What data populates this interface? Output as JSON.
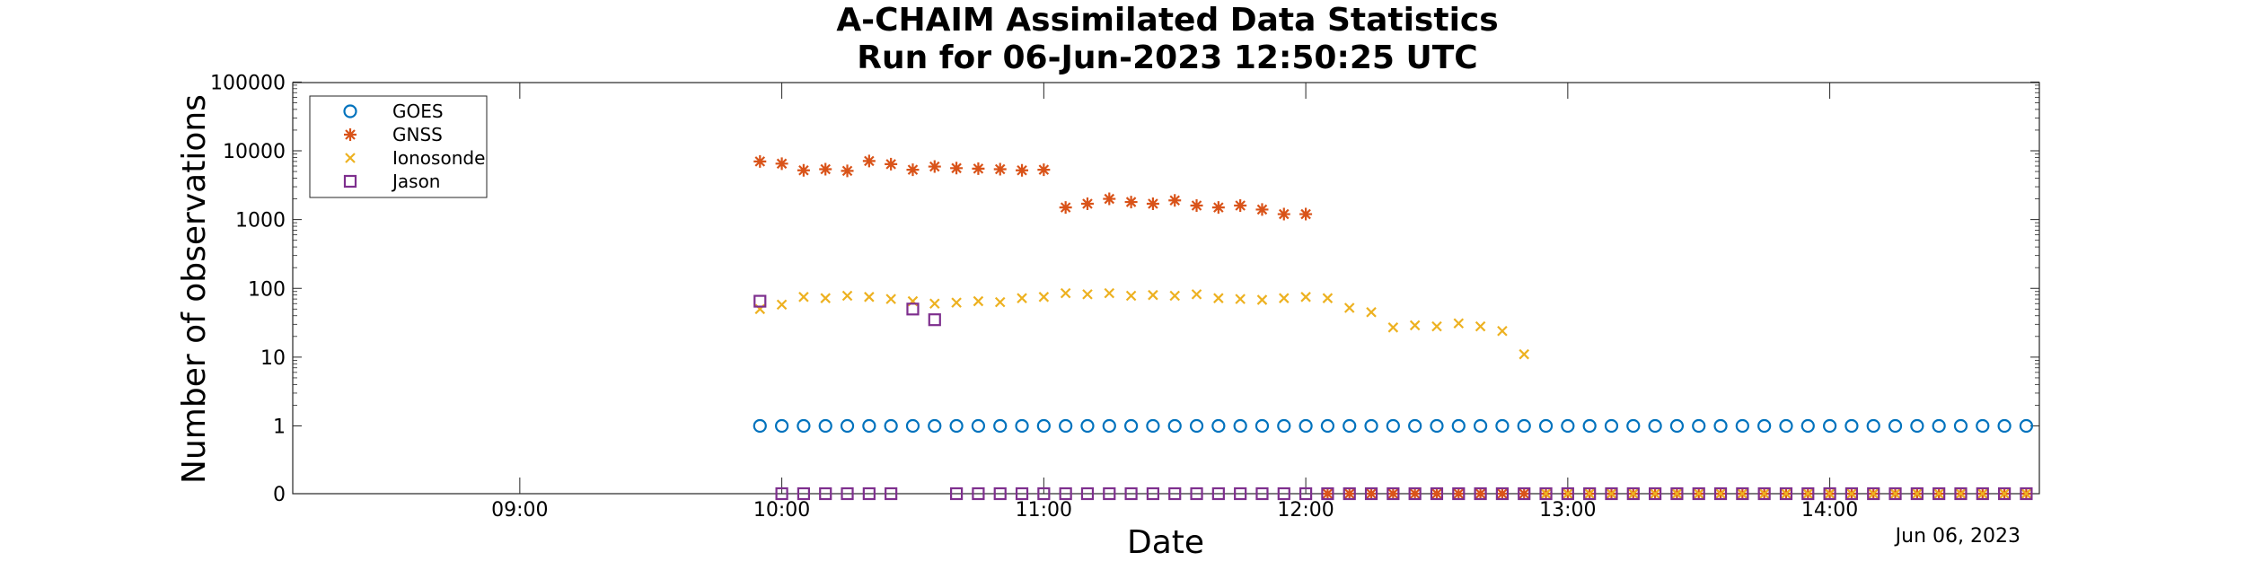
{
  "chart_data": {
    "type": "scatter",
    "title": "A-CHAIM Assimilated Data Statistics",
    "subtitle": "Run for 06-Jun-2023 12:50:25 UTC",
    "xlabel": "Date",
    "ylabel": "Number of observations",
    "date_note": "Jun 06, 2023",
    "xlim": [
      "08:08",
      "14:48"
    ],
    "y_scale": "log",
    "ylim": [
      0,
      100000
    ],
    "y_ticks": [
      "0",
      "1",
      "10",
      "100",
      "1000",
      "10000",
      "100000"
    ],
    "x_ticks": [
      "09:00",
      "10:00",
      "11:00",
      "12:00",
      "13:00",
      "14:00"
    ],
    "grid": false,
    "legend_position": "top-left",
    "series": [
      {
        "name": "GOES",
        "marker": "circle",
        "color": "#0072BD",
        "x": [
          "09:55",
          "10:00",
          "10:05",
          "10:10",
          "10:15",
          "10:20",
          "10:25",
          "10:30",
          "10:35",
          "10:40",
          "10:45",
          "10:50",
          "10:55",
          "11:00",
          "11:05",
          "11:10",
          "11:15",
          "11:20",
          "11:25",
          "11:30",
          "11:35",
          "11:40",
          "11:45",
          "11:50",
          "11:55",
          "12:00",
          "12:05",
          "12:10",
          "12:15",
          "12:20",
          "12:25",
          "12:30",
          "12:35",
          "12:40",
          "12:45",
          "12:50",
          "12:55",
          "13:00",
          "13:05",
          "13:10",
          "13:15",
          "13:20",
          "13:25",
          "13:30",
          "13:35",
          "13:40",
          "13:45",
          "13:50",
          "13:55",
          "14:00",
          "14:05",
          "14:10",
          "14:15",
          "14:20",
          "14:25",
          "14:30",
          "14:35",
          "14:40",
          "14:45"
        ],
        "y": [
          1,
          1,
          1,
          1,
          1,
          1,
          1,
          1,
          1,
          1,
          1,
          1,
          1,
          1,
          1,
          1,
          1,
          1,
          1,
          1,
          1,
          1,
          1,
          1,
          1,
          1,
          1,
          1,
          1,
          1,
          1,
          1,
          1,
          1,
          1,
          1,
          1,
          1,
          1,
          1,
          1,
          1,
          1,
          1,
          1,
          1,
          1,
          1,
          1,
          1,
          1,
          1,
          1,
          1,
          1,
          1,
          1,
          1,
          1
        ]
      },
      {
        "name": "GNSS",
        "marker": "star",
        "color": "#D95319",
        "x": [
          "09:55",
          "10:00",
          "10:05",
          "10:10",
          "10:15",
          "10:20",
          "10:25",
          "10:30",
          "10:35",
          "10:40",
          "10:45",
          "10:50",
          "10:55",
          "11:00",
          "11:05",
          "11:10",
          "11:15",
          "11:20",
          "11:25",
          "11:30",
          "11:35",
          "11:40",
          "11:45",
          "11:50",
          "11:55",
          "12:00",
          "12:05",
          "12:10",
          "12:15",
          "12:20",
          "12:25",
          "12:30",
          "12:35",
          "12:40",
          "12:45",
          "12:50",
          "12:55",
          "13:00",
          "13:05",
          "13:10",
          "13:15",
          "13:20",
          "13:25",
          "13:30",
          "13:35",
          "13:40",
          "13:45",
          "13:50",
          "13:55",
          "14:00",
          "14:05",
          "14:10",
          "14:15",
          "14:20",
          "14:25",
          "14:30",
          "14:35",
          "14:40",
          "14:45"
        ],
        "y": [
          7000,
          6500,
          5200,
          5400,
          5100,
          7100,
          6400,
          5300,
          5900,
          5600,
          5500,
          5400,
          5200,
          5300,
          1500,
          1700,
          2000,
          1800,
          1700,
          1900,
          1600,
          1500,
          1600,
          1400,
          1200,
          1200,
          0,
          0,
          0,
          0,
          0,
          0,
          0,
          0,
          0,
          0,
          0,
          0,
          0,
          0,
          0,
          0,
          0,
          0,
          0,
          0,
          0,
          0,
          0,
          0,
          0,
          0,
          0,
          0,
          0,
          0,
          0,
          0,
          0
        ]
      },
      {
        "name": "Ionosonde",
        "marker": "x",
        "color": "#EDB120",
        "x": [
          "09:55",
          "10:00",
          "10:05",
          "10:10",
          "10:15",
          "10:20",
          "10:25",
          "10:30",
          "10:35",
          "10:40",
          "10:45",
          "10:50",
          "10:55",
          "11:00",
          "11:05",
          "11:10",
          "11:15",
          "11:20",
          "11:25",
          "11:30",
          "11:35",
          "11:40",
          "11:45",
          "11:50",
          "11:55",
          "12:00",
          "12:05",
          "12:10",
          "12:15",
          "12:20",
          "12:25",
          "12:30",
          "12:35",
          "12:40",
          "12:45",
          "12:50",
          "12:55",
          "13:00",
          "13:05",
          "13:10",
          "13:15",
          "13:20",
          "13:25",
          "13:30",
          "13:35",
          "13:40",
          "13:45",
          "13:50",
          "13:55",
          "14:00",
          "14:05",
          "14:10",
          "14:15",
          "14:20",
          "14:25",
          "14:30",
          "14:35",
          "14:40",
          "14:45"
        ],
        "y": [
          50,
          58,
          75,
          72,
          78,
          75,
          70,
          65,
          60,
          62,
          65,
          63,
          72,
          75,
          85,
          82,
          85,
          78,
          80,
          78,
          82,
          72,
          70,
          68,
          72,
          75,
          72,
          52,
          45,
          27,
          29,
          28,
          31,
          28,
          24,
          11,
          0,
          0,
          0,
          0,
          0,
          0,
          0,
          0,
          0,
          0,
          0,
          0,
          0,
          0,
          0,
          0,
          0,
          0,
          0,
          0,
          0,
          0,
          0
        ]
      },
      {
        "name": "Jason",
        "marker": "square",
        "color": "#7E2F8E",
        "x": [
          "09:55",
          "10:00",
          "10:05",
          "10:10",
          "10:15",
          "10:20",
          "10:25",
          "10:30",
          "10:35",
          "10:40",
          "10:45",
          "10:50",
          "10:55",
          "11:00",
          "11:05",
          "11:10",
          "11:15",
          "11:20",
          "11:25",
          "11:30",
          "11:35",
          "11:40",
          "11:45",
          "11:50",
          "11:55",
          "12:00",
          "12:05",
          "12:10",
          "12:15",
          "12:20",
          "12:25",
          "12:30",
          "12:35",
          "12:40",
          "12:45",
          "12:50",
          "12:55",
          "13:00",
          "13:05",
          "13:10",
          "13:15",
          "13:20",
          "13:25",
          "13:30",
          "13:35",
          "13:40",
          "13:45",
          "13:50",
          "13:55",
          "14:00",
          "14:05",
          "14:10",
          "14:15",
          "14:20",
          "14:25",
          "14:30",
          "14:35",
          "14:40",
          "14:45"
        ],
        "y": [
          65,
          0,
          0,
          0,
          0,
          0,
          0,
          50,
          35,
          0,
          0,
          0,
          0,
          0,
          0,
          0,
          0,
          0,
          0,
          0,
          0,
          0,
          0,
          0,
          0,
          0,
          0,
          0,
          0,
          0,
          0,
          0,
          0,
          0,
          0,
          0,
          0,
          0,
          0,
          0,
          0,
          0,
          0,
          0,
          0,
          0,
          0,
          0,
          0,
          0,
          0,
          0,
          0,
          0,
          0,
          0,
          0,
          0,
          0
        ]
      }
    ]
  }
}
